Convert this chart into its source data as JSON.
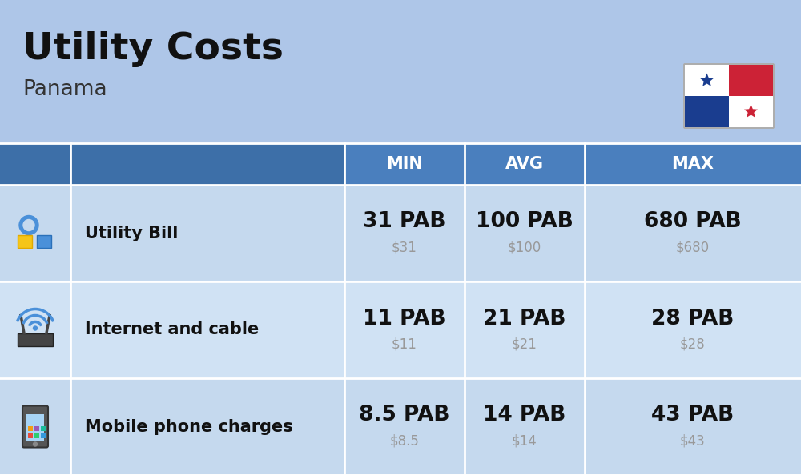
{
  "title": "Utility Costs",
  "subtitle": "Panama",
  "background_color": "#aec6e8",
  "table_bg_row0": "#c5d9ee",
  "table_bg_row1": "#d0e2f4",
  "table_bg_row2": "#c5d9ee",
  "header_bg": "#4a7fbe",
  "header_icon_bg": "#3d6fa8",
  "header_text_color": "#ffffff",
  "row_label_color": "#111111",
  "value_color": "#111111",
  "subvalue_color": "#999999",
  "border_color": "#ffffff",
  "col_headers": [
    "MIN",
    "AVG",
    "MAX"
  ],
  "rows": [
    {
      "label": "Utility Bill",
      "min_pab": "31 PAB",
      "min_usd": "$31",
      "avg_pab": "100 PAB",
      "avg_usd": "$100",
      "max_pab": "680 PAB",
      "max_usd": "$680"
    },
    {
      "label": "Internet and cable",
      "min_pab": "11 PAB",
      "min_usd": "$11",
      "avg_pab": "21 PAB",
      "avg_usd": "$21",
      "max_pab": "28 PAB",
      "max_usd": "$28"
    },
    {
      "label": "Mobile phone charges",
      "min_pab": "8.5 PAB",
      "min_usd": "$8.5",
      "avg_pab": "14 PAB",
      "avg_usd": "$14",
      "max_pab": "43 PAB",
      "max_usd": "$43"
    }
  ],
  "title_fontsize": 34,
  "subtitle_fontsize": 19,
  "header_fontsize": 15,
  "label_fontsize": 15,
  "value_fontsize": 19,
  "subvalue_fontsize": 12
}
